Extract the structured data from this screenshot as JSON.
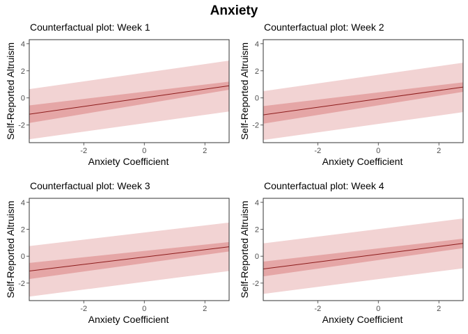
{
  "figure": {
    "title": "Anxiety"
  },
  "chart_data": [
    {
      "type": "line",
      "title": "Counterfactual plot: Week 1",
      "xlabel": "Anxiety Coefficient",
      "ylabel": "Self-Reported Altruism",
      "xlim": [
        -3.8,
        2.8
      ],
      "ylim": [
        -3.3,
        4.3
      ],
      "xticks": [
        -2,
        0,
        2
      ],
      "yticks": [
        -2,
        0,
        2,
        4
      ],
      "x": [
        -3.8,
        2.8
      ],
      "mean": [
        -1.2,
        0.9
      ],
      "ci_inner_lower": [
        -1.85,
        0.6
      ],
      "ci_inner_upper": [
        -0.55,
        1.2
      ],
      "pi_lower": [
        -3.05,
        -1.0
      ],
      "pi_upper": [
        0.65,
        2.75
      ],
      "colors": {
        "line": "#8b1a1a",
        "inner_band": "#e5a6a6",
        "outer_band": "#f2d3d3"
      }
    },
    {
      "type": "line",
      "title": "Counterfactual plot: Week 2",
      "xlabel": "Anxiety Coefficient",
      "ylabel": "Self-Reported Altruism",
      "xlim": [
        -3.8,
        2.8
      ],
      "ylim": [
        -3.3,
        4.3
      ],
      "xticks": [
        -2,
        0,
        2
      ],
      "yticks": [
        -2,
        0,
        2,
        4
      ],
      "x": [
        -3.8,
        2.8
      ],
      "mean": [
        -1.25,
        0.8
      ],
      "ci_inner_lower": [
        -1.9,
        0.45
      ],
      "ci_inner_upper": [
        -0.6,
        1.15
      ],
      "pi_lower": [
        -3.1,
        -1.05
      ],
      "pi_upper": [
        0.5,
        2.6
      ],
      "colors": {
        "line": "#8b1a1a",
        "inner_band": "#e5a6a6",
        "outer_band": "#f2d3d3"
      }
    },
    {
      "type": "line",
      "title": "Counterfactual plot: Week 3",
      "xlabel": "Anxiety Coefficient",
      "ylabel": "Self-Reported Altruism",
      "xlim": [
        -3.8,
        2.8
      ],
      "ylim": [
        -3.3,
        4.3
      ],
      "xticks": [
        -2,
        0,
        2
      ],
      "yticks": [
        -2,
        0,
        2,
        4
      ],
      "x": [
        -3.8,
        2.8
      ],
      "mean": [
        -1.1,
        0.7
      ],
      "ci_inner_lower": [
        -1.7,
        0.35
      ],
      "ci_inner_upper": [
        -0.5,
        1.05
      ],
      "pi_lower": [
        -3.0,
        -1.1
      ],
      "pi_upper": [
        0.75,
        2.5
      ],
      "colors": {
        "line": "#8b1a1a",
        "inner_band": "#e5a6a6",
        "outer_band": "#f2d3d3"
      }
    },
    {
      "type": "line",
      "title": "Counterfactual plot: Week 4",
      "xlabel": "Anxiety Coefficient",
      "ylabel": "Self-Reported Altruism",
      "xlim": [
        -3.8,
        2.8
      ],
      "ylim": [
        -3.3,
        4.3
      ],
      "xticks": [
        -2,
        0,
        2
      ],
      "yticks": [
        -2,
        0,
        2,
        4
      ],
      "x": [
        -3.8,
        2.8
      ],
      "mean": [
        -0.95,
        0.95
      ],
      "ci_inner_lower": [
        -1.5,
        0.6
      ],
      "ci_inner_upper": [
        -0.4,
        1.3
      ],
      "pi_lower": [
        -2.8,
        -0.9
      ],
      "pi_upper": [
        0.95,
        2.8
      ],
      "colors": {
        "line": "#8b1a1a",
        "inner_band": "#e5a6a6",
        "outer_band": "#f2d3d3"
      }
    }
  ]
}
